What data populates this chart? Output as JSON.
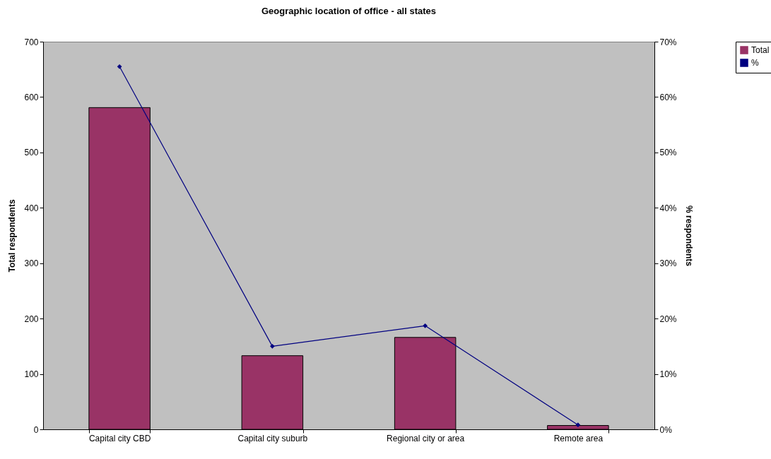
{
  "chart_data": {
    "type": "bar",
    "title": "Geographic location of office - all states",
    "ylabel": "Total respondents",
    "y2label": "% respondents",
    "categories": [
      "Capital city CBD",
      "Capital city suburb",
      "Regional city or area",
      "Remote area"
    ],
    "series": [
      {
        "name": "Total",
        "color": "#993366",
        "values": [
          581,
          133,
          166,
          7
        ]
      },
      {
        "name": "%",
        "type": "line",
        "axis": "y2",
        "color": "#000080",
        "marker": "diamond",
        "values": [
          65.5,
          15.0,
          18.7,
          0.8
        ]
      }
    ],
    "ylim": [
      0,
      700
    ],
    "yticks": [
      0,
      100,
      200,
      300,
      400,
      500,
      600,
      700
    ],
    "y2lim": [
      0,
      70
    ],
    "y2ticks": [
      {
        "value": 0,
        "label": "0%"
      },
      {
        "value": 10,
        "label": "10%"
      },
      {
        "value": 20,
        "label": "20%"
      },
      {
        "value": 30,
        "label": "30%"
      },
      {
        "value": 40,
        "label": "40%"
      },
      {
        "value": 50,
        "label": "50%"
      },
      {
        "value": 60,
        "label": "60%"
      },
      {
        "value": 70,
        "label": "70%"
      }
    ],
    "grid": false,
    "legend": "right"
  }
}
